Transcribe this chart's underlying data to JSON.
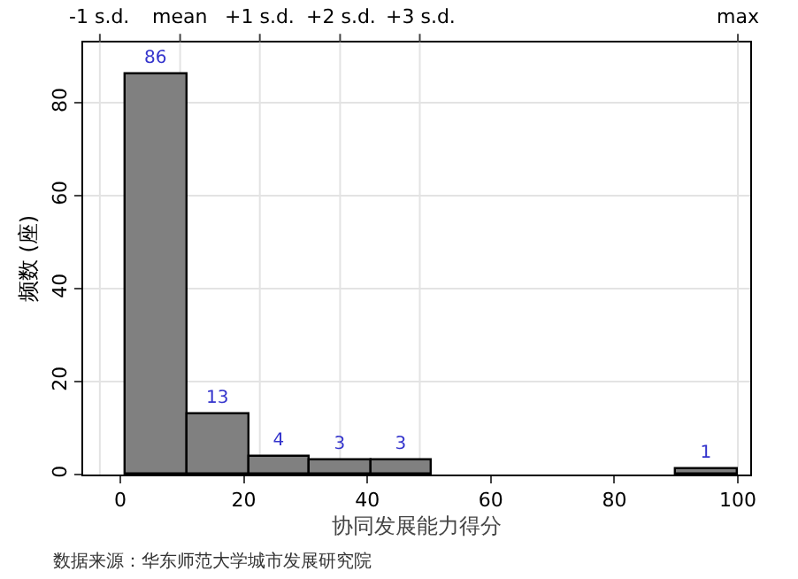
{
  "chart_data": {
    "type": "histogram",
    "bins": [
      1,
      10.9,
      20.8,
      30.7,
      40.6,
      50.5,
      60.4,
      70.3,
      80.2,
      90.1,
      100
    ],
    "values": [
      86,
      13,
      4,
      3,
      3,
      0,
      0,
      0,
      0,
      1
    ],
    "value_labels": [
      "86",
      "13",
      "4",
      "3",
      "3",
      null,
      null,
      null,
      null,
      "1"
    ],
    "color": "#808080",
    "xlabel": "协同发展能力得分",
    "ylabel": "频数 (座)",
    "xlim": [
      -6,
      102
    ],
    "xticks": [
      0,
      20,
      40,
      60,
      80,
      100
    ],
    "ylim": [
      0,
      93
    ],
    "yticks": [
      0,
      20,
      40,
      60,
      80
    ],
    "ref_lines": [
      {
        "axis": "x",
        "value": -3.3,
        "label": "-1 s.d."
      },
      {
        "axis": "x",
        "value": 9.7,
        "label": "mean"
      },
      {
        "axis": "x",
        "value": 22.6,
        "label": "+1 s.d."
      },
      {
        "axis": "x",
        "value": 35.6,
        "label": "+2 s.d."
      },
      {
        "axis": "x",
        "value": 48.5,
        "label": "+3 s.d."
      },
      {
        "axis": "x",
        "value": 100,
        "label": "max"
      }
    ],
    "grid": "y",
    "legend": false,
    "annotations": [
      "数据来源：华东师范大学城市发展研究院"
    ]
  }
}
